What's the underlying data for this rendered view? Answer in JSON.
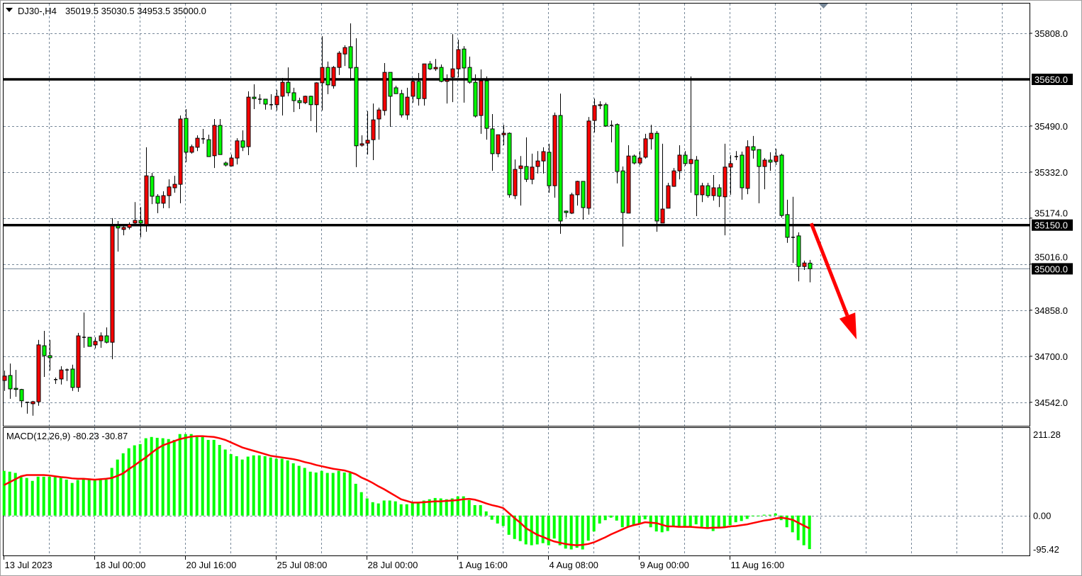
{
  "header": {
    "symbol_timeframe": "DJ30-,H4",
    "ohlc": "35019.5 35030.5 34953.5 35000.0"
  },
  "price_axis": {
    "labels": [
      "35808.0",
      "35490.0",
      "35332.0",
      "35174.0",
      "35016.0",
      "34858.0",
      "34700.0",
      "34542.0"
    ]
  },
  "horizontal_lines": [
    {
      "price": 35650.0,
      "label": "35650.0"
    },
    {
      "price": 35150.0,
      "label": "35150.0"
    }
  ],
  "bid_line": {
    "price": 35000.0,
    "label": "35000.0"
  },
  "time_axis": {
    "ticks": [
      {
        "label": "13 Jul 2023",
        "bar": 0
      },
      {
        "label": "18 Jul 00:00",
        "bar": 16
      },
      {
        "label": "20 Jul 16:00",
        "bar": 32
      },
      {
        "label": "25 Jul 08:00",
        "bar": 48
      },
      {
        "label": "28 Jul 00:00",
        "bar": 64
      },
      {
        "label": "1 Aug 16:00",
        "bar": 80
      },
      {
        "label": "4 Aug 08:00",
        "bar": 96
      },
      {
        "label": "9 Aug 00:00",
        "bar": 112
      },
      {
        "label": "11 Aug 16:00",
        "bar": 128
      }
    ]
  },
  "macd": {
    "label": "MACD(12,26,9) -80.23 -30.87",
    "axis_labels": [
      "211.28",
      "0.00",
      "-95.42"
    ]
  },
  "colors": {
    "bull": "#ff0000",
    "bear": "#00ff00",
    "grid": "#778899",
    "hline": "#000000",
    "bid_line": "#778899",
    "arrow": "#ff0000",
    "macd_hist": "#00ff00",
    "signal": "#ff0000"
  },
  "chart_data": [
    {
      "type": "candlestick",
      "title": "DJ30-,H4",
      "ylim": [
        34450,
        35860
      ],
      "grid": true,
      "open": [
        34617,
        34634,
        34590,
        34586,
        34542,
        34537,
        34544,
        34736,
        34702,
        34620,
        34622,
        34653,
        34656,
        34593,
        34765,
        34765,
        34739,
        34753,
        34770,
        34748,
        35147,
        35135,
        35142,
        35157,
        35166,
        35152,
        35317,
        35249,
        35225,
        35251,
        35278,
        35290,
        35516,
        35400,
        35417,
        35446,
        35443,
        35388,
        35492,
        35363,
        35353,
        35380,
        35439,
        35419,
        35589,
        35582,
        35582,
        35563,
        35563,
        35592,
        35640,
        35604,
        35577,
        35570,
        35592,
        35563,
        35638,
        35691,
        35628,
        35691,
        35737,
        35762,
        35691,
        35424,
        35431,
        35443,
        35514,
        35543,
        35674,
        35621,
        35601,
        35528,
        35592,
        35643,
        35584,
        35703,
        35686,
        35691,
        35643,
        35657,
        35686,
        35754,
        35691,
        35640,
        35526,
        35645,
        35480,
        35395,
        35460,
        35465,
        35251,
        35344,
        35351,
        35307,
        35351,
        35370,
        35400,
        35285,
        35526,
        35198,
        35191,
        35254,
        35300,
        35208,
        35509,
        35560,
        35563,
        35492,
        35495,
        35336,
        35191,
        35387,
        35363,
        35383,
        35446,
        35465,
        35157,
        35208,
        35283,
        35336,
        35390,
        35361,
        35373,
        35254,
        35285,
        35251,
        35278,
        35247,
        35349,
        35385,
        35390,
        35276,
        35419,
        35409,
        35351,
        35373,
        35368,
        35390,
        35186,
        35108,
        35113,
        35008,
        35019.5
      ],
      "high": [
        34651,
        34675,
        34653,
        34588,
        34544,
        34547,
        34756,
        34787,
        34756,
        34627,
        34666,
        34658,
        34671,
        34780,
        34850,
        34765,
        34765,
        34782,
        34799,
        35174,
        35164,
        35152,
        35159,
        35229,
        35212,
        35417,
        35329,
        35256,
        35266,
        35307,
        35319,
        35526,
        35548,
        35426,
        35458,
        35480,
        35460,
        35514,
        35514,
        35368,
        35392,
        35448,
        35475,
        35609,
        35633,
        35599,
        35582,
        35599,
        35614,
        35655,
        35691,
        35621,
        35587,
        35594,
        35594,
        35640,
        35798,
        35711,
        35696,
        35747,
        35767,
        35842,
        35791,
        35458,
        35541,
        35567,
        35553,
        35706,
        35674,
        35628,
        35614,
        35621,
        35655,
        35672,
        35703,
        35713,
        35720,
        35701,
        35667,
        35805,
        35786,
        35764,
        35728,
        35667,
        35684,
        35660,
        35531,
        35460,
        35494,
        35468,
        35375,
        35387,
        35451,
        35395,
        35404,
        35417,
        35429,
        35536,
        35601,
        35200,
        35261,
        35302,
        35300,
        35521,
        35584,
        35575,
        35570,
        35509,
        35499,
        35351,
        35424,
        35392,
        35404,
        35463,
        35494,
        35473,
        35429,
        35295,
        35346,
        35424,
        35404,
        35660,
        35387,
        35295,
        35295,
        35322,
        35290,
        35429,
        35390,
        35404,
        35402,
        35441,
        35456,
        35409,
        35380,
        35400,
        35412,
        35395,
        35237,
        35247,
        35125,
        35028,
        35030.5
      ],
      "low": [
        34581,
        34554,
        34561,
        34525,
        34503,
        34496,
        34530,
        34629,
        34651,
        34605,
        34603,
        34615,
        34581,
        34578,
        34729,
        34734,
        34727,
        34729,
        34744,
        34690,
        35059,
        35115,
        35135,
        35152,
        35108,
        35127,
        35222,
        35191,
        35208,
        35208,
        35261,
        35225,
        35366,
        35395,
        35404,
        35429,
        35385,
        35346,
        35392,
        35351,
        35351,
        35358,
        35404,
        35390,
        35548,
        35565,
        35546,
        35546,
        35543,
        35526,
        35592,
        35538,
        35548,
        35565,
        35507,
        35468,
        35543,
        35599,
        35618,
        35665,
        35696,
        35645,
        35349,
        35419,
        35392,
        35373,
        35443,
        35526,
        35487,
        35601,
        35519,
        35511,
        35570,
        35560,
        35560,
        35682,
        35679,
        35640,
        35567,
        35572,
        35657,
        35570,
        35635,
        35519,
        35463,
        35443,
        35336,
        35383,
        35424,
        35244,
        35239,
        35217,
        35298,
        35290,
        35327,
        35327,
        35261,
        35244,
        35120,
        35176,
        35188,
        35217,
        35169,
        35186,
        35468,
        35548,
        35487,
        35434,
        35293,
        35076,
        35191,
        35358,
        35356,
        35378,
        35409,
        35127,
        35157,
        35208,
        35281,
        35307,
        35353,
        35261,
        35181,
        35229,
        35244,
        35234,
        35212,
        35115,
        35254,
        35373,
        35237,
        35256,
        35378,
        35225,
        35273,
        35336,
        35356,
        35176,
        35089,
        35020,
        34957,
        34996,
        34953.5
      ],
      "close": [
        34632,
        34588,
        34586,
        34547,
        34542,
        34544,
        34739,
        34702,
        34695,
        34620,
        34653,
        34653,
        34593,
        34770,
        34765,
        34734,
        34751,
        34770,
        34748,
        35147,
        35140,
        35142,
        35152,
        35166,
        35157,
        35319,
        35249,
        35225,
        35251,
        35281,
        35290,
        35514,
        35400,
        35419,
        35448,
        35446,
        35385,
        35492,
        35392,
        35356,
        35380,
        35439,
        35417,
        35589,
        35584,
        35582,
        35565,
        35563,
        35592,
        35640,
        35604,
        35577,
        35570,
        35592,
        35563,
        35638,
        35691,
        35631,
        35691,
        35740,
        35759,
        35689,
        35422,
        35429,
        35441,
        35511,
        35545,
        35674,
        35592,
        35601,
        35528,
        35589,
        35643,
        35584,
        35703,
        35686,
        35691,
        35643,
        35648,
        35686,
        35752,
        35689,
        35640,
        35524,
        35645,
        35482,
        35395,
        35460,
        35465,
        35254,
        35341,
        35353,
        35307,
        35349,
        35370,
        35402,
        35285,
        35526,
        35164,
        35193,
        35254,
        35300,
        35210,
        35507,
        35560,
        35563,
        35490,
        35492,
        35334,
        35193,
        35387,
        35363,
        35380,
        35446,
        35465,
        35164,
        35205,
        35285,
        35336,
        35390,
        35361,
        35375,
        35254,
        35285,
        35251,
        35278,
        35249,
        35349,
        35361,
        35385,
        35278,
        35419,
        35407,
        35351,
        35373,
        35366,
        35387,
        35183,
        35108,
        35108,
        35008,
        35020,
        35000.0
      ],
      "annotations": [
        {
          "type": "arrow",
          "from": {
            "bar": 142.3,
            "price": 35156
          },
          "to": {
            "bar": 150.3,
            "price": 34758
          }
        }
      ]
    },
    {
      "type": "bar+line",
      "title": "MACD(12,26,9)",
      "ylim": [
        -95.42,
        211.28
      ],
      "histogram": [
        107,
        105,
        102,
        92,
        90,
        83,
        93,
        93,
        93,
        92,
        90,
        86,
        78,
        85,
        86,
        86,
        86,
        86,
        86,
        114,
        134,
        149,
        161,
        168,
        171,
        185,
        188,
        186,
        185,
        183,
        181,
        195,
        195,
        195,
        188,
        188,
        181,
        181,
        169,
        158,
        147,
        142,
        134,
        141,
        144,
        144,
        142,
        139,
        136,
        136,
        132,
        125,
        119,
        114,
        105,
        103,
        107,
        102,
        102,
        107,
        103,
        102,
        76,
        56,
        41,
        32,
        29,
        36,
        36,
        34,
        27,
        27,
        31,
        31,
        36,
        39,
        42,
        41,
        39,
        41,
        46,
        46,
        37,
        25,
        25,
        10,
        -10,
        -19,
        -25,
        -46,
        -56,
        -61,
        -69,
        -71,
        -69,
        -66,
        -71,
        -55,
        -71,
        -79,
        -81,
        -77,
        -81,
        -60,
        -38,
        -19,
        -11,
        -5,
        -12,
        -28,
        -27,
        -23,
        -20,
        -9,
        -28,
        -38,
        -40,
        -37,
        -25,
        -25,
        -27,
        -27,
        -21,
        -27,
        -32,
        -37,
        -28,
        -28,
        -23,
        -16,
        -13,
        -8,
        -1,
        -1,
        2,
        2,
        5,
        -11,
        -28,
        -40,
        -59,
        -71,
        -80.23
      ],
      "signal": [
        73,
        80,
        87,
        94,
        97,
        97,
        97,
        97,
        96,
        94,
        92,
        91,
        89,
        88,
        88,
        87,
        86,
        87,
        88,
        90,
        95,
        101,
        111,
        120,
        130,
        139,
        150,
        160,
        168,
        173,
        178,
        183,
        186,
        189,
        190,
        190,
        189,
        188,
        185,
        181,
        175,
        169,
        163,
        159,
        155,
        151,
        147,
        143,
        141,
        139,
        137,
        135,
        132,
        128,
        125,
        121,
        118,
        115,
        112,
        110,
        108,
        104,
        99,
        91,
        85,
        78,
        70,
        63,
        55,
        47,
        39,
        35,
        31,
        31,
        32,
        33,
        34,
        34,
        35,
        36,
        37,
        39,
        40,
        38,
        34,
        29,
        25,
        22,
        18,
        6,
        -6,
        -17,
        -30,
        -38,
        -46,
        -51,
        -57,
        -62,
        -65,
        -68,
        -70,
        -71,
        -70,
        -68,
        -64,
        -58,
        -52,
        -45,
        -39,
        -33,
        -27,
        -23,
        -20,
        -16,
        -17,
        -18,
        -22,
        -26,
        -26,
        -27,
        -27,
        -27,
        -28,
        -29,
        -30,
        -29,
        -29,
        -28,
        -26,
        -25,
        -23,
        -21,
        -18,
        -15,
        -12,
        -10,
        -7,
        -5,
        -7,
        -10,
        -17,
        -24,
        -30.87
      ]
    }
  ]
}
